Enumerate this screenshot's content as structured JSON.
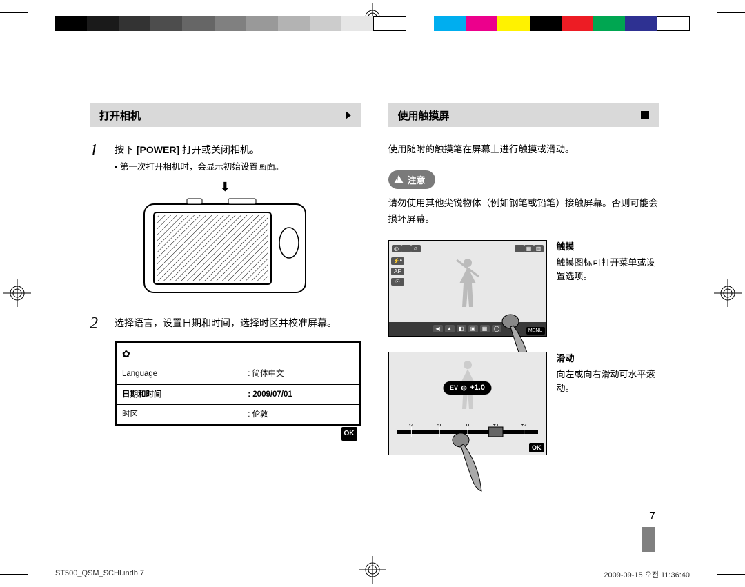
{
  "printer_marks": {
    "grayscale_swatches": [
      "#000000",
      "#1a1a1a",
      "#333333",
      "#4d4d4d",
      "#666666",
      "#808080",
      "#999999",
      "#b3b3b3",
      "#cccccc",
      "#e6e6e6",
      "#ffffff"
    ],
    "color_swatches": [
      "#00aeef",
      "#ec008c",
      "#fff200",
      "#000000",
      "#ed1c24",
      "#00a651",
      "#2e3192",
      "#ffffff"
    ]
  },
  "left": {
    "header": "打开相机",
    "step1": {
      "num": "1",
      "main_pre": "按下 ",
      "main_bold": "[POWER]",
      "main_post": " 打开或关闭相机。",
      "sub": "• 第一次打开相机时，会显示初始设置画面。"
    },
    "step2": {
      "num": "2",
      "main": "选择语言，设置日期和时间，选择时区并校准屏幕。"
    },
    "settings": {
      "rows": [
        {
          "label": "Language",
          "value": ": 简体中文",
          "active": false
        },
        {
          "label": "日期和时间",
          "value": ": 2009/07/01",
          "active": true
        },
        {
          "label": "时区",
          "value": ": 伦敦",
          "active": false
        }
      ],
      "ok": "OK"
    }
  },
  "right": {
    "header": "使用触摸屏",
    "intro": "使用随附的触摸笔在屏幕上进行触摸或滑动。",
    "caution_label": "注意",
    "caution_text": "请勿使用其他尖锐物体（例如钢笔或铅笔）接触屏幕。否则可能会损坏屏幕。",
    "touch": {
      "title": "触摸",
      "desc": "触摸图标可打开菜单或设置选项。",
      "top_left_icons": [
        "◎",
        "▭",
        "☺"
      ],
      "top_right_icons": [
        "I",
        "▦",
        "▥"
      ],
      "left_icons": [
        "⚡ᴬ",
        "AF",
        "☉"
      ],
      "bottom_icons": [
        "◀",
        "▲",
        "◧",
        "▣",
        "▦",
        "◯"
      ],
      "menu_label": "MENU"
    },
    "slide": {
      "title": "滑动",
      "desc": "向左或向右滑动可水平滚动。",
      "ev_label": "EV",
      "ev_value": "+1.0",
      "ticks": [
        "-2",
        "-1",
        "0",
        "+1",
        "+2"
      ],
      "ok": "OK"
    }
  },
  "page_number": "7",
  "footer": {
    "left": "ST500_QSM_SCHI.indb   7",
    "right": "2009-09-15   오전 11:36:40"
  }
}
